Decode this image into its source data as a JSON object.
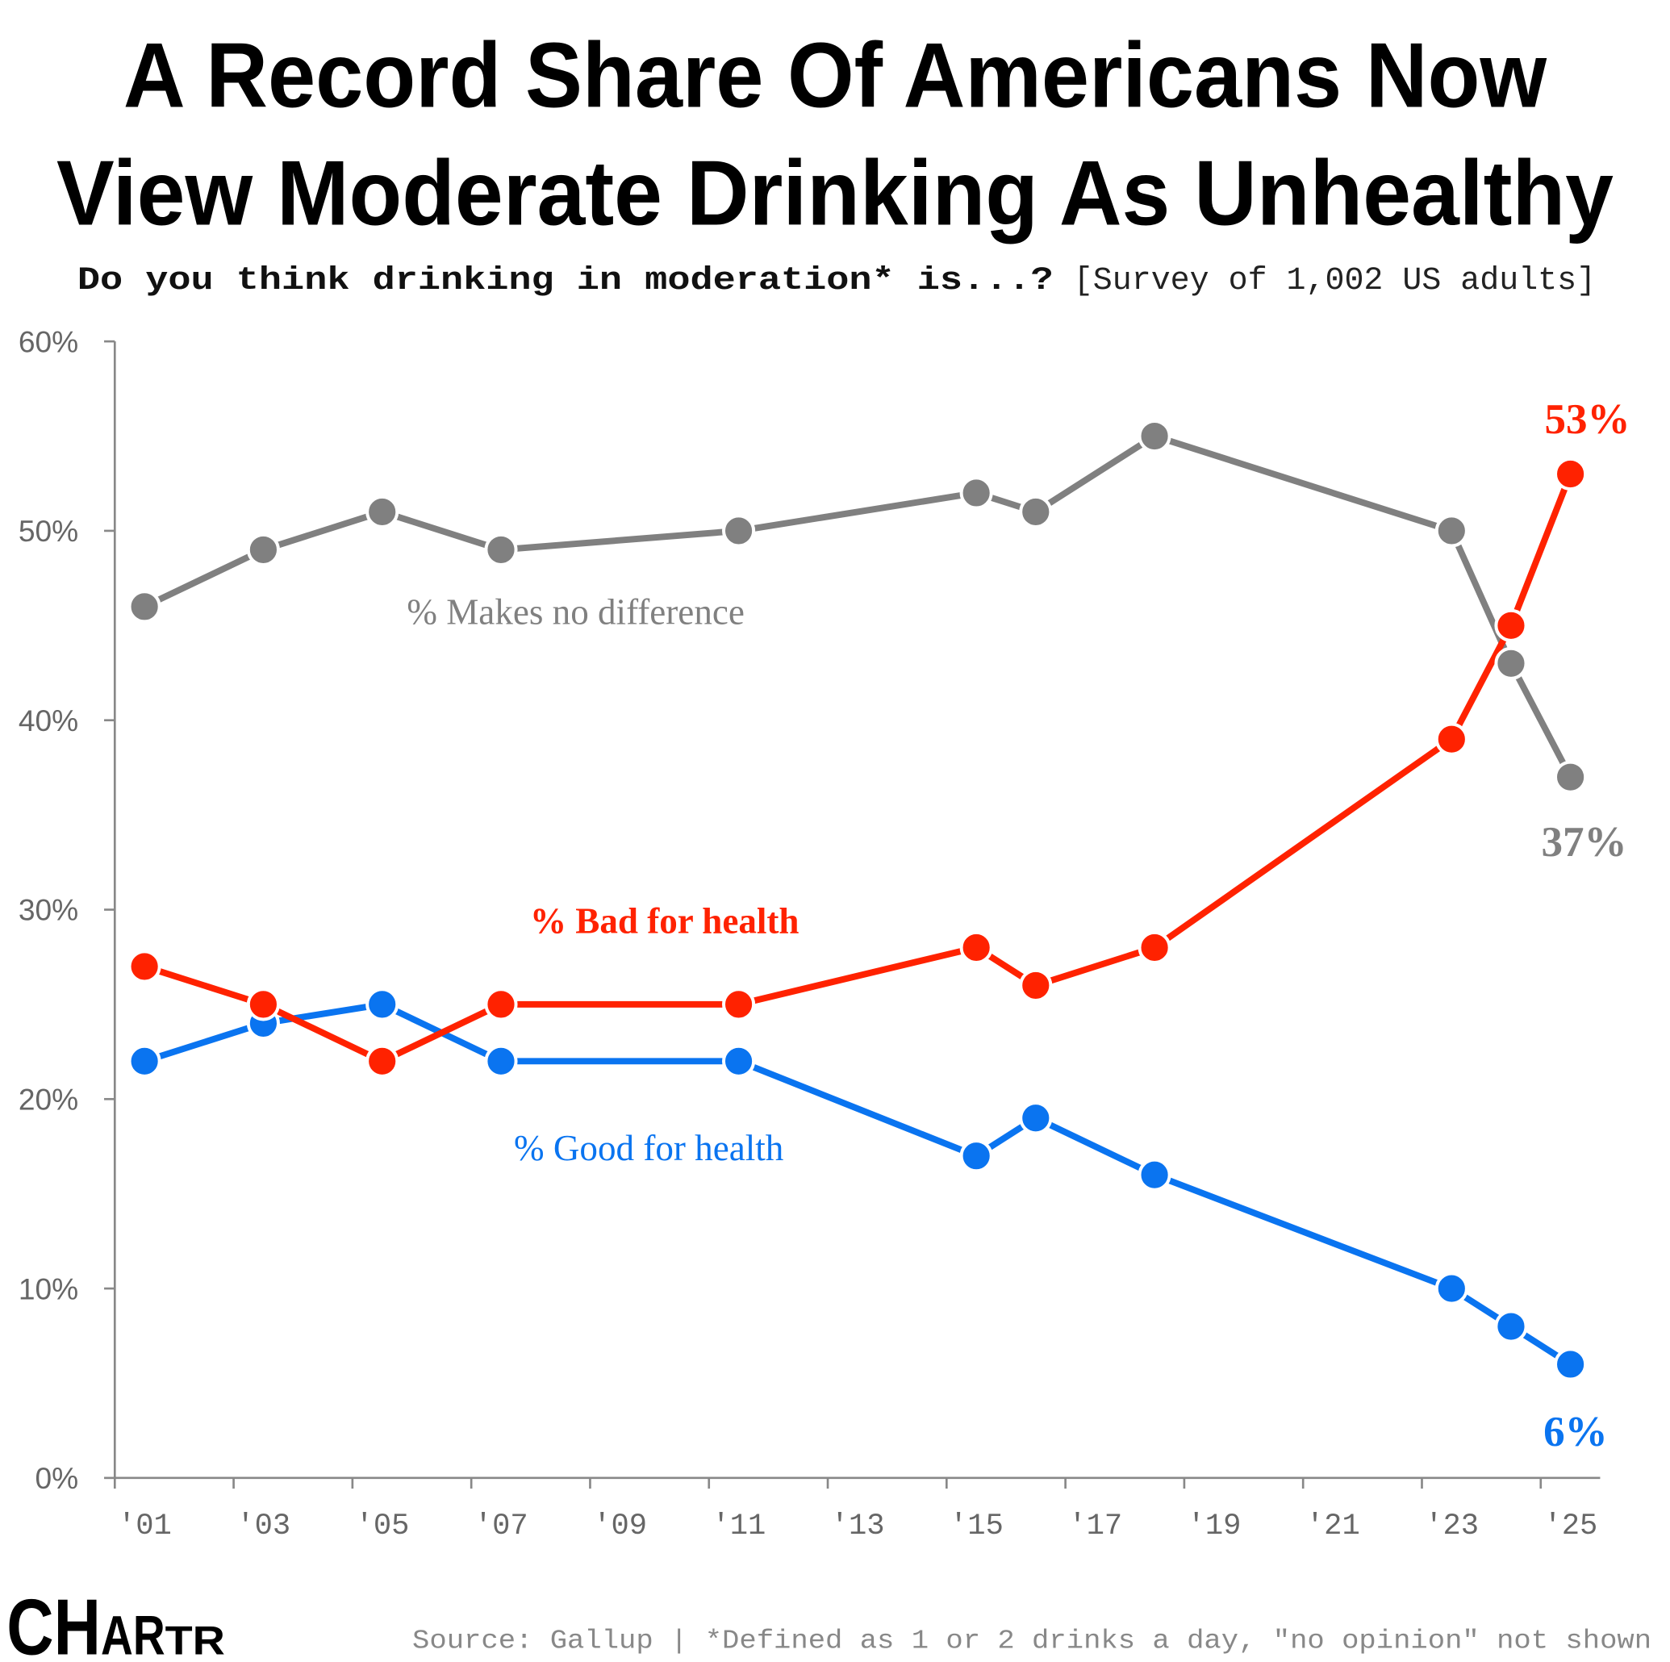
{
  "title_line1": "A Record Share Of Americans Now",
  "title_line2": "View Moderate Drinking As Unhealthy",
  "subtitle_question": "Do you think drinking in moderation* is...?",
  "subtitle_note": "[Survey of 1,002 US adults]",
  "source": "Source: Gallup | *Defined as 1 or 2 drinks a day, \"no opinion\" not shown",
  "logo": "CHARTR",
  "chart_data": {
    "type": "line",
    "title": "A Record Share Of Americans Now View Moderate Drinking As Unhealthy",
    "xlabel": "",
    "ylabel": "",
    "x": [
      2001.5,
      2003.5,
      2005.5,
      2007.5,
      2011.5,
      2015.5,
      2016.5,
      2018.5,
      2023.5,
      2024.5,
      2025.5
    ],
    "xlim": [
      2001,
      2026
    ],
    "ylim": [
      0,
      60
    ],
    "yticks": [
      0,
      10,
      20,
      30,
      40,
      50,
      60
    ],
    "ytick_labels": [
      "0%",
      "10%",
      "20%",
      "30%",
      "40%",
      "50%",
      "60%"
    ],
    "xticks": [
      2001,
      2003,
      2005,
      2007,
      2009,
      2011,
      2013,
      2015,
      2017,
      2019,
      2021,
      2023,
      2025
    ],
    "xtick_labels": [
      "'01",
      "'03",
      "'05",
      "'07",
      "'09",
      "'11",
      "'13",
      "'15",
      "'17",
      "'19",
      "'21",
      "'23",
      "'25"
    ],
    "grid": false,
    "series": [
      {
        "name": "% Makes no difference",
        "color": "#808080",
        "values": [
          46,
          49,
          51,
          49,
          50,
          52,
          51,
          55,
          50,
          43,
          37
        ],
        "end_label": "37%"
      },
      {
        "name": "% Bad for health",
        "color": "#ff2200",
        "values": [
          27,
          25,
          22,
          25,
          25,
          28,
          26,
          28,
          39,
          45,
          53
        ],
        "end_label": "53%"
      },
      {
        "name": "% Good for health",
        "color": "#0a74f0",
        "values": [
          22,
          24,
          25,
          22,
          22,
          17,
          19,
          16,
          10,
          8,
          6
        ],
        "end_label": "6%"
      }
    ]
  }
}
